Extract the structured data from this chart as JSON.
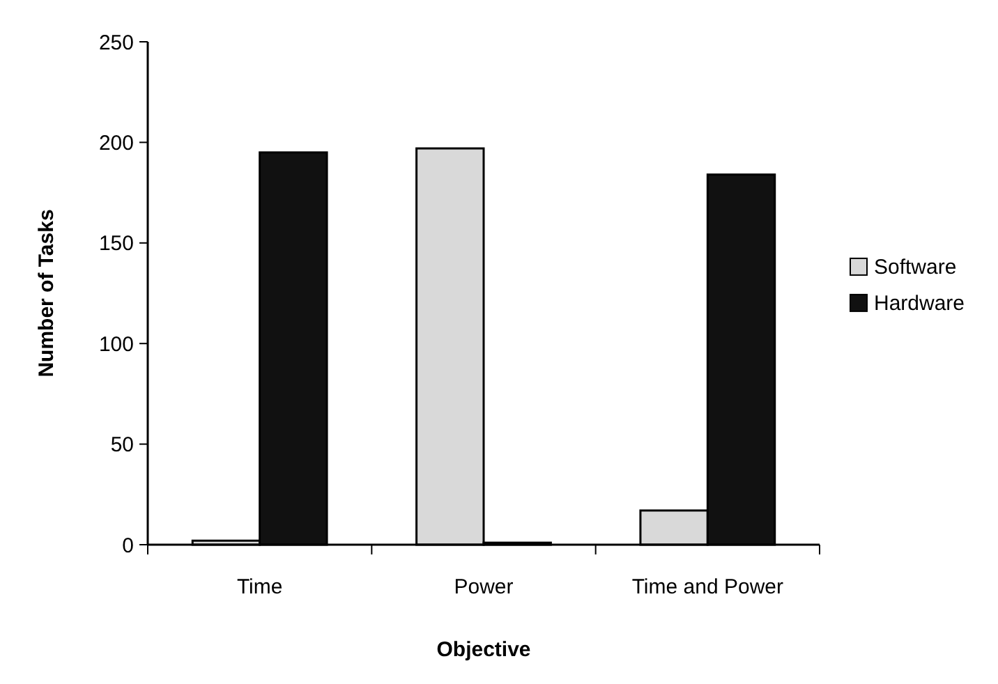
{
  "chart_data": {
    "type": "bar",
    "xlabel": "Objective",
    "ylabel": "Number of Tasks",
    "categories": [
      "Time",
      "Power",
      "Time and Power"
    ],
    "series": [
      {
        "name": "Software",
        "color": "#d9d9d9",
        "values": [
          2,
          197,
          17
        ]
      },
      {
        "name": "Hardware",
        "color": "#111111",
        "values": [
          195,
          1,
          184
        ]
      }
    ],
    "ylim": [
      0,
      250
    ],
    "yticks": [
      0,
      50,
      100,
      150,
      200,
      250
    ],
    "grid": false,
    "legend": "right"
  }
}
